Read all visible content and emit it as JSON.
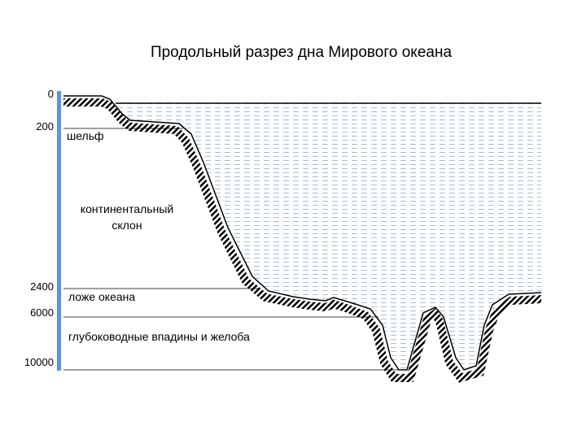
{
  "title": "Продольный разрез дна Мирового океана",
  "depth_scale": [
    "0",
    "200",
    "2400",
    "6000",
    "10000"
  ],
  "zones": {
    "shelf": "шельф",
    "slope": [
      "континентальный",
      "склон"
    ],
    "bed": "ложе океана",
    "trenches": "глубоководные впадины и желоба"
  }
}
